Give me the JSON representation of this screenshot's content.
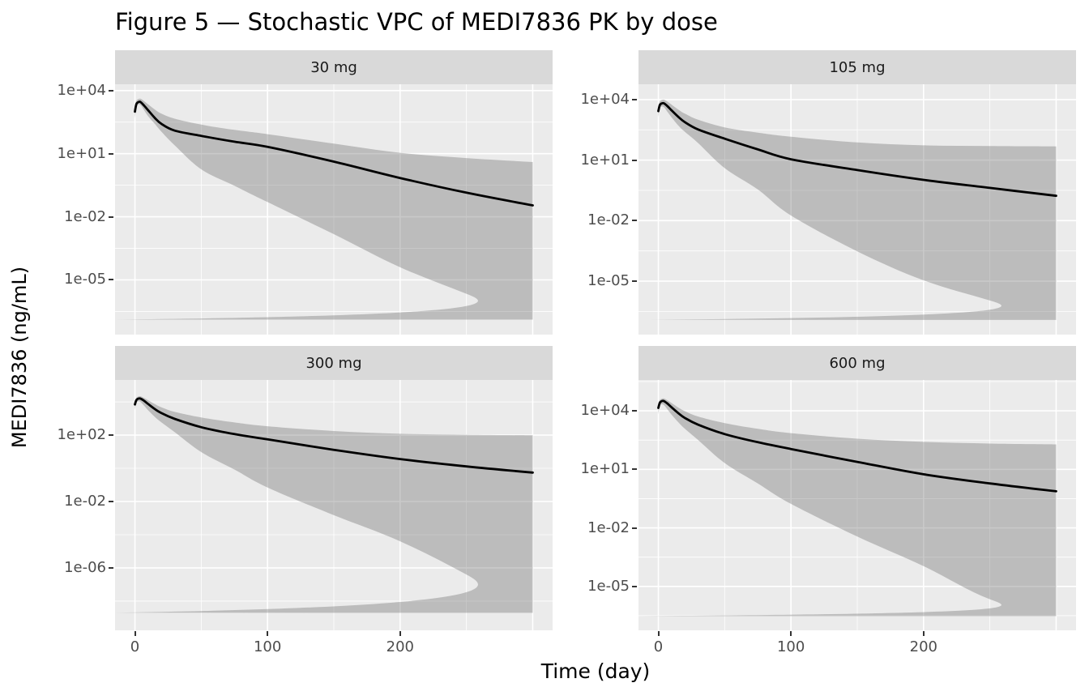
{
  "title": "Figure 5 — Stochastic VPC of MEDI7836 PK by dose",
  "colors": {
    "panel_bg": "#ebebeb",
    "strip_bg": "#d9d9d9",
    "gridline": "#ffffff",
    "ribbon_fill": "rgba(100,100,100,0.35)",
    "median_line": "#000000",
    "axis_text": "#4d4d4d",
    "tick_mark": "#333333"
  },
  "chart_data": {
    "type": "line",
    "title": "Figure 5 — Stochastic VPC of MEDI7836 PK by dose",
    "xlabel": "Time (day)",
    "ylabel": "MEDI7836 (ng/mL)",
    "facet_variable": "dose",
    "legend": "none",
    "grid": "white major and minor gridlines on grey panels",
    "y_scale": "log10",
    "xlim": [
      -15,
      315
    ],
    "x_tick_labels": [
      "0",
      "100",
      "200"
    ],
    "x_ticks": [
      0,
      100,
      200
    ],
    "x_major": [
      0,
      100,
      200,
      300
    ],
    "x_minor": [
      50,
      150,
      250
    ],
    "time_days": [
      0,
      1,
      2,
      4,
      7,
      10,
      15,
      20,
      30,
      50,
      75,
      100,
      150,
      200,
      250,
      300
    ],
    "series_description": "black median line with grey simulation prediction band (upper/lower bounds)",
    "panels": [
      {
        "facet_label": "30 mg",
        "y_ticks": [
          {
            "label": "1e+04",
            "log": 4
          },
          {
            "label": "1e+01",
            "log": 1
          },
          {
            "label": "1e-02",
            "log": -2
          },
          {
            "label": "1e-05",
            "log": -5
          }
        ],
        "ylim_log": [
          4.3,
          -7.6
        ],
        "y_minor_log": [
          2.5,
          -0.5,
          -3.5,
          -6.5
        ],
        "median": [
          1000,
          2200,
          2700,
          2900,
          1900,
          1150,
          500,
          260,
          125,
          70,
          37,
          21,
          4.2,
          0.7,
          0.14,
          0.035
        ],
        "pi_high": [
          2000,
          3200,
          3800,
          4100,
          3100,
          2200,
          1250,
          800,
          460,
          240,
          135,
          85,
          30,
          11,
          6.2,
          4.0
        ],
        "pi_low": [
          480,
          1500,
          2100,
          2100,
          1150,
          600,
          260,
          110,
          25,
          1.8,
          0.3,
          0.05,
          0.0015,
          4e-05,
          2.2e-06,
          1.3e-07
        ]
      },
      {
        "facet_label": "105 mg",
        "y_ticks": [
          {
            "label": "1e+04",
            "log": 4
          },
          {
            "label": "1e+01",
            "log": 1
          },
          {
            "label": "1e-02",
            "log": -2
          },
          {
            "label": "1e-05",
            "log": -5
          }
        ],
        "ylim_log": [
          4.76,
          -7.65
        ],
        "y_minor_log": [
          2.5,
          -0.5,
          -3.5,
          -6.5
        ],
        "median": [
          2700,
          5200,
          6200,
          6600,
          4600,
          2900,
          1400,
          760,
          330,
          115,
          34,
          11,
          3.2,
          1.05,
          0.42,
          0.17
        ],
        "pi_high": [
          5200,
          7800,
          9200,
          10000,
          7800,
          5600,
          3200,
          2000,
          1000,
          420,
          230,
          145,
          75,
          54,
          50,
          48
        ],
        "pi_low": [
          1400,
          3400,
          4400,
          4300,
          2400,
          1300,
          520,
          250,
          70,
          4.0,
          0.35,
          0.018,
          0.0003,
          1.1e-05,
          1.1e-06,
          1.2e-07
        ]
      },
      {
        "facet_label": "300 mg",
        "y_ticks": [
          {
            "label": "1e+02",
            "log": 2
          },
          {
            "label": "1e-02",
            "log": -2
          },
          {
            "label": "1e-06",
            "log": -6
          }
        ],
        "ylim_log": [
          5.32,
          -9.76
        ],
        "y_minor_log": [
          4,
          0,
          -4,
          -8
        ],
        "median": [
          7000,
          12500,
          15000,
          16000,
          11500,
          7400,
          3700,
          2100,
          950,
          300,
          115,
          55,
          13,
          3.6,
          1.3,
          0.55
        ],
        "pi_high": [
          12500,
          17500,
          20500,
          22000,
          17000,
          12500,
          7300,
          4700,
          2500,
          1150,
          580,
          340,
          175,
          120,
          105,
          98
        ],
        "pi_low": [
          3300,
          8500,
          10500,
          10000,
          5800,
          3100,
          1250,
          580,
          150,
          9.5,
          0.85,
          0.07,
          0.0015,
          4e-05,
          4e-07,
          2e-09
        ]
      },
      {
        "facet_label": "600 mg",
        "y_ticks": [
          {
            "label": "1e+04",
            "log": 4
          },
          {
            "label": "1e+01",
            "log": 1
          },
          {
            "label": "1e-02",
            "log": -2
          },
          {
            "label": "1e-05",
            "log": -5
          }
        ],
        "ylim_log": [
          5.58,
          -7.25
        ],
        "y_minor_log": [
          5.5,
          2.5,
          -0.5,
          -3.5,
          -6.5
        ],
        "median": [
          14000,
          25000,
          30000,
          32000,
          23000,
          15000,
          7600,
          4300,
          1950,
          640,
          245,
          110,
          24,
          5.6,
          1.9,
          0.75
        ],
        "pi_high": [
          25000,
          35000,
          40000,
          43000,
          34000,
          25000,
          14800,
          9500,
          5100,
          2350,
          1200,
          720,
          370,
          255,
          210,
          190
        ],
        "pi_low": [
          6600,
          17000,
          21000,
          20000,
          11500,
          6300,
          2600,
          1200,
          320,
          21,
          1.9,
          0.17,
          0.0036,
          0.00011,
          2.2e-06,
          3e-07
        ]
      }
    ]
  }
}
